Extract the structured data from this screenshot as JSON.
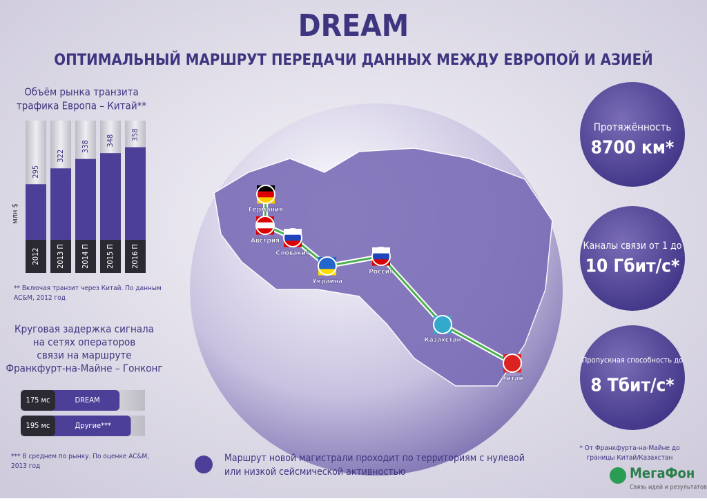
{
  "header": {
    "title": "DREAM",
    "subtitle": "ОПТИМАЛЬНЫЙ МАРШРУТ ПЕРЕДАЧИ ДАННЫХ МЕЖДУ ЕВРОПОЙ И АЗИЕЙ"
  },
  "chart_data": [
    {
      "type": "bar",
      "title": [
        "Объём рынка транзита",
        "трафика Европа – Китай**"
      ],
      "y_label": "млн $",
      "categories": [
        "2012",
        "2013 П",
        "2014 П",
        "2015 П",
        "2016 П"
      ],
      "values": [
        295,
        322,
        338,
        348,
        358
      ],
      "color": "#4b3f98",
      "ylim": [
        200,
        400
      ],
      "footnote": [
        "** Включая транзит через Китай. По данным",
        "AC&M, 2012 год"
      ]
    },
    {
      "type": "barh",
      "title": [
        "Круговая задержка сигнала",
        "на сетях операторов",
        "связи на маршруте",
        "Франкфурт-на-Майне – Гонконг"
      ],
      "categories": [
        "DREAM",
        "Другие***"
      ],
      "values": [
        175,
        195
      ],
      "value_labels": [
        "175 мс",
        "195 мс"
      ],
      "color": "#4b3f98",
      "xlim": [
        0,
        220
      ],
      "footnote": [
        "*** В среднем по рынку. По оценке AC&M,",
        "2013 год"
      ]
    }
  ],
  "stats": [
    {
      "label": "Протяжённость",
      "value": "8700 км*"
    },
    {
      "label": "Каналы связи от 1 до",
      "value": "10 Гбит/с*"
    },
    {
      "label": "Пропускная способность до",
      "value": "8 Тбит/с*"
    }
  ],
  "stats_footnote": [
    "* От Франкфурта-на-Майне до",
    "границы Китай/Казахстан"
  ],
  "map": {
    "cities": [
      "Германия",
      "Австрия",
      "Словакия",
      "Украина",
      "Россия",
      "Казахстан",
      "Китай"
    ]
  },
  "note": [
    "Маршрут новой магистрали проходит по территориям с нулевой",
    "или низкой сейсмической активностью"
  ],
  "logo": {
    "name": "МегаФон",
    "slogan": "Связь идей и результатов"
  }
}
